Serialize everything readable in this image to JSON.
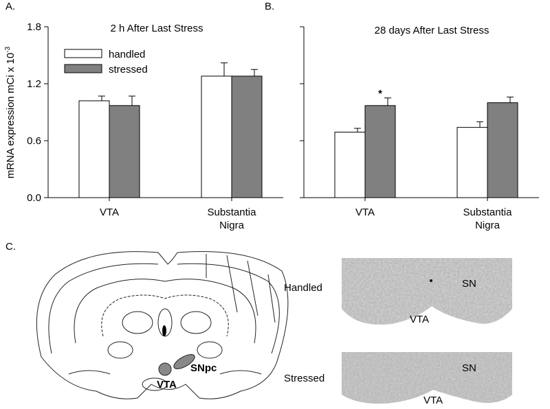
{
  "chart_data": [
    {
      "type": "bar",
      "panel_label": "A.",
      "title": "2 h After Last Stress",
      "ylabel": "mRNA expression mCi x 10",
      "ylabel_exponent": "-3",
      "categories": [
        "VTA",
        "Substantia Nigra"
      ],
      "series": [
        {
          "name": "handled",
          "color": "#ffffff",
          "values": [
            1.02,
            1.28
          ],
          "errors": [
            0.05,
            0.14
          ]
        },
        {
          "name": "stressed",
          "color": "#808080",
          "values": [
            0.97,
            1.28
          ],
          "errors": [
            0.1,
            0.07
          ]
        }
      ],
      "ylim": [
        0,
        1.8
      ],
      "yticks": [
        {
          "value": 0,
          "label": "0.0"
        },
        0.6,
        1.2,
        1.8
      ],
      "show_ytick_labels": true,
      "legend": "top left"
    },
    {
      "type": "bar",
      "panel_label": "B.",
      "title": "28 days After Last Stress",
      "categories": [
        "VTA",
        "Substantia Nigra"
      ],
      "series": [
        {
          "name": "handled",
          "color": "#ffffff",
          "values": [
            0.69,
            0.74
          ],
          "errors": [
            0.04,
            0.06
          ]
        },
        {
          "name": "stressed",
          "color": "#808080",
          "values": [
            0.97,
            1.0
          ],
          "errors": [
            0.08,
            0.06
          ]
        }
      ],
      "ylim": [
        0,
        1.8
      ],
      "yticks": [
        0,
        0.6,
        1.2,
        1.8
      ],
      "show_ytick_labels": false,
      "annotations": [
        {
          "text": "*",
          "category": "VTA",
          "series": "stressed"
        }
      ]
    }
  ],
  "panel_c": {
    "label": "C.",
    "atlas_labels": [
      "VTA",
      "SNpc"
    ],
    "rows": [
      {
        "label": "Handled",
        "sn": "SN",
        "vta": "VTA"
      },
      {
        "label": "Stressed",
        "sn": "SN",
        "vta": "VTA"
      }
    ]
  }
}
